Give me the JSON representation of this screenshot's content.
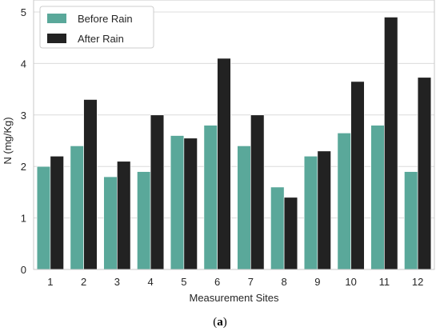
{
  "caption": {
    "open": "(",
    "letter": "a",
    "close": ")"
  },
  "colors": {
    "before": "#5aa89a",
    "after": "#222222",
    "grid": "#dcdcdc",
    "frame": "#c8c8c8"
  },
  "chart_data": {
    "type": "bar",
    "title": "",
    "xlabel": "Measurement Sites",
    "ylabel": "N (mg/Kg)",
    "ylim": [
      0,
      5
    ],
    "yticks": [
      "0",
      "1",
      "2",
      "3",
      "4",
      "5"
    ],
    "grid": "horizontal",
    "legend_position": "top-left",
    "categories": [
      "1",
      "2",
      "3",
      "4",
      "5",
      "6",
      "7",
      "8",
      "9",
      "10",
      "11",
      "12"
    ],
    "series": [
      {
        "name": "Before Rain",
        "values": [
          2.0,
          2.4,
          1.8,
          1.9,
          2.6,
          2.8,
          2.4,
          1.6,
          2.2,
          2.65,
          2.8,
          1.9
        ]
      },
      {
        "name": "After Rain",
        "values": [
          2.2,
          3.3,
          2.1,
          3.0,
          2.55,
          4.1,
          3.0,
          1.4,
          2.3,
          3.65,
          4.9,
          3.73
        ]
      }
    ]
  }
}
